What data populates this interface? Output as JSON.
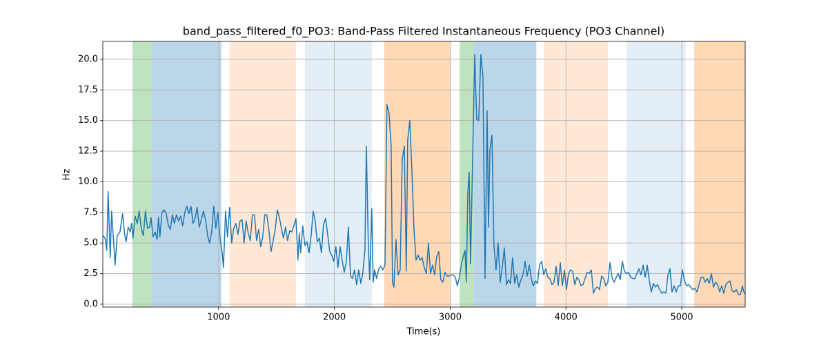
{
  "chart_data": {
    "type": "line",
    "title": "band_pass_filtered_f0_PO3: Band-Pass Filtered Instantaneous Frequency (PO3 Channel)",
    "xlabel": "Time(s)",
    "ylabel": "Hz",
    "color": "#1f77b4",
    "grid": true,
    "xlim": [
      0,
      5548
    ],
    "ylim": [
      -0.23,
      21.46
    ],
    "xticks": [
      1000,
      2000,
      3000,
      4000,
      5000
    ],
    "yticks": [
      {
        "value": 0,
        "label": "0.0"
      },
      2.5,
      {
        "value": 5,
        "label": "5.0"
      },
      7.5,
      {
        "value": 10,
        "label": "10.0"
      },
      12.5,
      {
        "value": 15,
        "label": "15.0"
      },
      17.5,
      {
        "value": 20,
        "label": "20.0"
      }
    ],
    "spans": [
      {
        "start": 255,
        "end": 422,
        "color": "#2ca02c",
        "alpha": 0.3
      },
      {
        "start": 422,
        "end": 1024,
        "color": "#1f77b4",
        "alpha": 0.3
      },
      {
        "start": 1095,
        "end": 1668,
        "color": "#ff7f0e",
        "alpha": 0.17
      },
      {
        "start": 1745,
        "end": 2323,
        "color": "#1f77b4",
        "alpha": 0.12
      },
      {
        "start": 2431,
        "end": 3004,
        "color": "#ff7f0e",
        "alpha": 0.3
      },
      {
        "start": 3082,
        "end": 3201,
        "color": "#2ca02c",
        "alpha": 0.3
      },
      {
        "start": 3201,
        "end": 3744,
        "color": "#1f77b4",
        "alpha": 0.3
      },
      {
        "start": 3809,
        "end": 4362,
        "color": "#ff7f0e",
        "alpha": 0.17
      },
      {
        "start": 4525,
        "end": 5032,
        "color": "#1f77b4",
        "alpha": 0.12
      },
      {
        "start": 5108,
        "end": 5548,
        "color": "#ff7f0e",
        "alpha": 0.3
      }
    ],
    "x": [
      4,
      22,
      34,
      46,
      64,
      76,
      94,
      106,
      124,
      148,
      171,
      189,
      201,
      219,
      237,
      249,
      261,
      279,
      297,
      314,
      332,
      350,
      368,
      386,
      404,
      416,
      434,
      452,
      469,
      481,
      493,
      511,
      529,
      547,
      565,
      583,
      601,
      618,
      636,
      654,
      672,
      690,
      708,
      726,
      744,
      762,
      779,
      797,
      815,
      833,
      851,
      869,
      887,
      905,
      922,
      940,
      958,
      976,
      994,
      1012,
      1030,
      1042,
      1060,
      1077,
      1095,
      1113,
      1131,
      1149,
      1167,
      1185,
      1203,
      1220,
      1238,
      1256,
      1274,
      1292,
      1310,
      1328,
      1346,
      1364,
      1381,
      1399,
      1417,
      1435,
      1453,
      1471,
      1489,
      1507,
      1525,
      1542,
      1560,
      1578,
      1596,
      1614,
      1632,
      1650,
      1668,
      1685,
      1697,
      1709,
      1727,
      1745,
      1763,
      1781,
      1799,
      1817,
      1834,
      1852,
      1870,
      1888,
      1906,
      1924,
      1942,
      1960,
      1978,
      1995,
      2013,
      2031,
      2049,
      2067,
      2085,
      2103,
      2121,
      2139,
      2156,
      2174,
      2192,
      2210,
      2228,
      2246,
      2264,
      2276,
      2293,
      2305,
      2323,
      2335,
      2347,
      2365,
      2383,
      2401,
      2419,
      2437,
      2454,
      2472,
      2490,
      2502,
      2514,
      2532,
      2550,
      2568,
      2586,
      2604,
      2621,
      2633,
      2651,
      2669,
      2687,
      2705,
      2723,
      2741,
      2758,
      2776,
      2794,
      2812,
      2830,
      2848,
      2866,
      2884,
      2902,
      2919,
      2937,
      2955,
      2973,
      2991,
      3009,
      3027,
      3045,
      3062,
      3080,
      3098,
      3116,
      3128,
      3140,
      3152,
      3164,
      3176,
      3194,
      3212,
      3229,
      3247,
      3265,
      3283,
      3301,
      3319,
      3331,
      3343,
      3361,
      3378,
      3396,
      3414,
      3432,
      3450,
      3468,
      3486,
      3504,
      3521,
      3539,
      3557,
      3575,
      3593,
      3611,
      3629,
      3647,
      3665,
      3683,
      3700,
      3718,
      3736,
      3754,
      3772,
      3790,
      3808,
      3825,
      3843,
      3861,
      3879,
      3897,
      3915,
      3933,
      3951,
      3969,
      3987,
      4004,
      4022,
      4040,
      4058,
      4076,
      4094,
      4112,
      4130,
      4147,
      4165,
      4183,
      4201,
      4219,
      4237,
      4255,
      4273,
      4290,
      4308,
      4326,
      4344,
      4362,
      4380,
      4398,
      4416,
      4434,
      4452,
      4469,
      4487,
      4505,
      4523,
      4541,
      4559,
      4577,
      4594,
      4612,
      4630,
      4648,
      4666,
      4684,
      4702,
      4720,
      4737,
      4755,
      4773,
      4791,
      4809,
      4827,
      4845,
      4863,
      4881,
      4898,
      4916,
      4934,
      4952,
      4970,
      4988,
      5006,
      5024,
      5042,
      5059,
      5077,
      5095,
      5113,
      5131,
      5149,
      5167,
      5185,
      5203,
      5220,
      5238,
      5256,
      5274,
      5292,
      5310,
      5328,
      5346,
      5363,
      5381,
      5399,
      5417,
      5435,
      5453,
      5471,
      5489,
      5507,
      5524,
      5536,
      5548
    ],
    "values": [
      5.6,
      5.3,
      4.4,
      9.2,
      3.8,
      7.6,
      5.0,
      3.2,
      5.6,
      5.9,
      7.4,
      5.7,
      5.1,
      6.3,
      5.9,
      6.6,
      5.4,
      7.2,
      6.6,
      7.6,
      6.2,
      5.6,
      7.6,
      6.2,
      6.3,
      7.1,
      5.5,
      5.9,
      5.3,
      7.1,
      5.5,
      7.5,
      7.7,
      7.4,
      6.5,
      6.1,
      7.3,
      6.6,
      7.3,
      6.8,
      7.2,
      6.4,
      7.5,
      8.0,
      7.4,
      8.0,
      6.6,
      7.0,
      7.9,
      6.3,
      6.9,
      7.6,
      6.9,
      5.6,
      5.0,
      5.9,
      8.0,
      6.2,
      7.5,
      5.4,
      4.3,
      3.0,
      7.6,
      5.5,
      7.9,
      5.0,
      6.2,
      6.6,
      5.7,
      6.8,
      6.9,
      5.0,
      6.8,
      5.8,
      5.2,
      7.3,
      7.3,
      5.2,
      6.1,
      4.7,
      5.5,
      7.3,
      7.3,
      6.0,
      4.3,
      5.2,
      6.1,
      7.7,
      7.1,
      6.2,
      5.4,
      6.3,
      5.2,
      6.0,
      5.9,
      6.4,
      7.0,
      3.6,
      5.8,
      4.2,
      6.4,
      4.8,
      5.1,
      4.2,
      5.6,
      7.6,
      6.8,
      5.1,
      5.4,
      4.2,
      6.5,
      7.0,
      5.7,
      4.3,
      4.0,
      3.5,
      4.7,
      3.0,
      4.7,
      3.6,
      2.6,
      3.5,
      6.3,
      2.3,
      2.1,
      2.8,
      1.6,
      2.8,
      1.7,
      2.6,
      4.4,
      12.9,
      5.0,
      2.0,
      7.8,
      1.8,
      2.8,
      2.1,
      2.9,
      3.1,
      2.8,
      3.2,
      16.3,
      15.6,
      13.0,
      1.8,
      1.4,
      5.3,
      2.4,
      2.8,
      11.8,
      12.9,
      2.7,
      13.4,
      15.0,
      11.0,
      6.2,
      3.6,
      4.0,
      3.6,
      3.8,
      3.0,
      2.5,
      5.0,
      2.5,
      3.2,
      2.4,
      3.9,
      4.3,
      2.0,
      1.8,
      2.6,
      2.3,
      2.3,
      2.4,
      2.4,
      2.2,
      1.5,
      2.2,
      3.3,
      4.0,
      4.4,
      1.8,
      9.0,
      10.8,
      3.3,
      12.0,
      20.4,
      15.1,
      15.0,
      20.4,
      18.6,
      2.1,
      15.8,
      6.3,
      12.6,
      13.8,
      4.8,
      2.8,
      5.0,
      1.8,
      3.0,
      4.6,
      1.6,
      2.0,
      1.7,
      3.8,
      1.7,
      2.4,
      1.4,
      2.0,
      2.4,
      3.5,
      2.3,
      3.2,
      2.1,
      1.5,
      1.9,
      1.7,
      3.2,
      3.5,
      2.4,
      2.9,
      2.2,
      2.1,
      1.6,
      1.8,
      3.1,
      1.5,
      3.4,
      1.5,
      2.8,
      1.2,
      2.5,
      2.8,
      2.7,
      1.6,
      2.2,
      2.0,
      1.5,
      1.6,
      2.1,
      2.6,
      2.5,
      2.8,
      0.9,
      1.3,
      1.4,
      1.2,
      2.3,
      2.1,
      1.5,
      1.8,
      3.4,
      2.2,
      1.8,
      2.2,
      2.5,
      2.0,
      3.5,
      2.7,
      2.5,
      2.6,
      2.2,
      2.1,
      2.1,
      2.5,
      2.9,
      2.4,
      3.2,
      2.2,
      3.2,
      1.9,
      1.0,
      1.7,
      1.4,
      1.6,
      1.2,
      0.9,
      1.0,
      0.9,
      2.4,
      2.9,
      1.0,
      1.5,
      1.0,
      1.5,
      1.5,
      2.8,
      1.9,
      1.5,
      1.6,
      1.4,
      1.2,
      1.3,
      1.0,
      1.6,
      2.2,
      2.2,
      1.8,
      2.1,
      1.7,
      2.5,
      1.4,
      1.8,
      1.6,
      1.0,
      1.5,
      0.9,
      1.6,
      1.8,
      1.9,
      1.1,
      1.0,
      1.2,
      0.8,
      0.8,
      1.5,
      1.0,
      0.8
    ]
  }
}
